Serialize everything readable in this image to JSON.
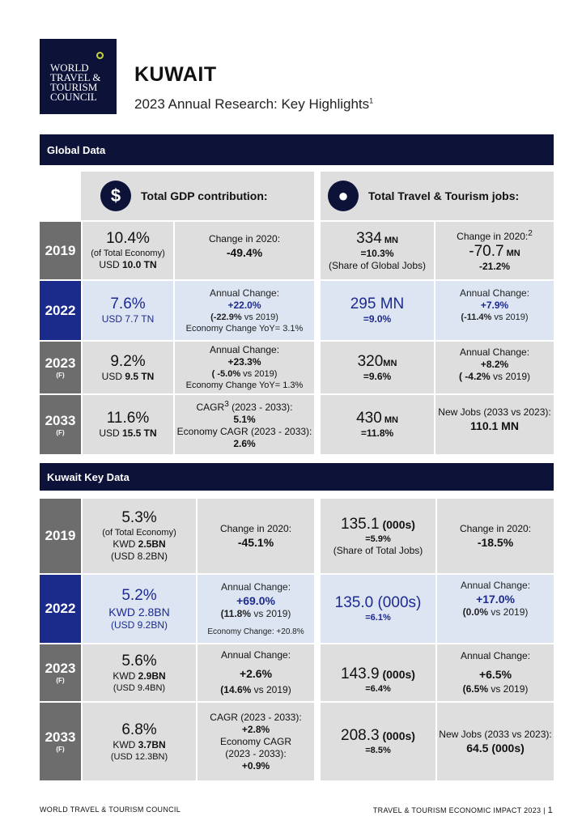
{
  "logo": {
    "lines": [
      "WORLD",
      "TRAVEL &",
      "TOURISM",
      "COUNCIL"
    ]
  },
  "header": {
    "title": "KUWAIT",
    "subtitle": "2023 Annual Research: Key Highlights",
    "sup": "1"
  },
  "global": {
    "bar": "Global Data",
    "gdp_header": "Total GDP contribution:",
    "jobs_header": "Total Travel & Tourism jobs:",
    "rows": [
      {
        "year": "2019",
        "f": "",
        "gdp": [
          "10.4%",
          "(of Total Economy)",
          "USD ",
          "10.0 TN"
        ],
        "gdp_change": [
          "Change in 2020:",
          "-49.4%"
        ],
        "jobs": [
          "334",
          " MN",
          "=10.3%",
          "(Share of Global Jobs)"
        ],
        "jobs_change": [
          "Change in 2020:",
          "2",
          "-70.7",
          " MN",
          "-21.2%"
        ]
      },
      {
        "year": "2022",
        "f": "",
        "gdp": [
          "7.6%",
          "USD 7.7 TN"
        ],
        "gdp_change": [
          "Annual Change:",
          "+22.0%",
          "(-22.9%",
          " vs 2019)",
          "Economy Change YoY= 3.1%"
        ],
        "jobs": [
          "295 MN",
          "=9.0%"
        ],
        "jobs_change": [
          "Annual Change:",
          "+7.9%",
          "(-11.4%",
          " vs 2019)"
        ]
      },
      {
        "year": "2023",
        "f": "(F)",
        "gdp": [
          "9.2%",
          "USD ",
          "9.5 TN"
        ],
        "gdp_change": [
          "Annual Change:",
          "+23.3%",
          "( -5.0%",
          " vs 2019)",
          "Economy Change YoY= 1.3%"
        ],
        "jobs": [
          "320",
          "MN",
          "=9.6%"
        ],
        "jobs_change": [
          "Annual Change:",
          "+8.2%",
          "( -4.2%",
          " vs 2019)"
        ]
      },
      {
        "year": "2033",
        "f": "(F)",
        "gdp": [
          "11.6%",
          "USD ",
          "15.5 TN"
        ],
        "gdp_change": [
          "CAGR",
          "3",
          " (2023 - 2033):",
          "5.1%",
          "Economy CAGR (2023 - 2033):",
          "2.6%"
        ],
        "jobs": [
          "430",
          " MN",
          "=11.8%"
        ],
        "jobs_change": [
          "New Jobs (2033 vs 2023):",
          "110.1",
          " MN"
        ]
      }
    ]
  },
  "kuwait": {
    "bar": "Kuwait Key Data",
    "rows": [
      {
        "year": "2019",
        "f": "",
        "gdp": [
          "5.3%",
          "(of Total Economy)",
          "KWD ",
          "2.5BN",
          "(USD 8.2BN)"
        ],
        "gdp_change": [
          "Change in 2020:",
          "-45.1%"
        ],
        "jobs": [
          "135.1",
          " (000s)",
          "=5.9%",
          "(Share of Total Jobs)"
        ],
        "jobs_change": [
          "Change in 2020:",
          "-18.5%"
        ]
      },
      {
        "year": "2022",
        "f": "",
        "gdp": [
          "5.2%",
          "KWD 2.8BN",
          "(USD 9.2BN)"
        ],
        "gdp_change": [
          "Annual Change:",
          "+69.0%",
          "(11.8%",
          " vs 2019)",
          "Economy Change: +20.8%"
        ],
        "jobs": [
          "135.0 (000s)",
          "=6.1%"
        ],
        "jobs_change": [
          "Annual Change:",
          "+17.0%",
          "(0.0%",
          " vs 2019)"
        ]
      },
      {
        "year": "2023",
        "f": "(F)",
        "gdp": [
          "5.6%",
          "KWD ",
          "2.9BN",
          "(USD 9.4BN)"
        ],
        "gdp_change": [
          "Annual Change:",
          "+2.6%",
          "(14.6%",
          " vs 2019)"
        ],
        "jobs": [
          "143.9",
          " (000s)",
          "=6.4%"
        ],
        "jobs_change": [
          "Annual Change:",
          "+6.5%",
          "(6.5%",
          " vs 2019)"
        ]
      },
      {
        "year": "2033",
        "f": "(F)",
        "gdp": [
          "6.8%",
          "KWD ",
          "3.7BN",
          "(USD 12.3BN)"
        ],
        "gdp_change": [
          "CAGR (2023 - 2033):",
          "+2.8%",
          "Economy CAGR",
          "(2023 - 2033):",
          "+0.9%"
        ],
        "jobs": [
          "208.3",
          " (000s)",
          "=8.5%"
        ],
        "jobs_change": [
          "New Jobs (2033 vs 2023):",
          "64.5 (000s)"
        ]
      }
    ]
  },
  "footer": {
    "left": "WORLD TRAVEL & TOURISM COUNCIL",
    "right": "TRAVEL & TOURISM ECONOMIC IMPACT 2023 |",
    "page": "1"
  }
}
